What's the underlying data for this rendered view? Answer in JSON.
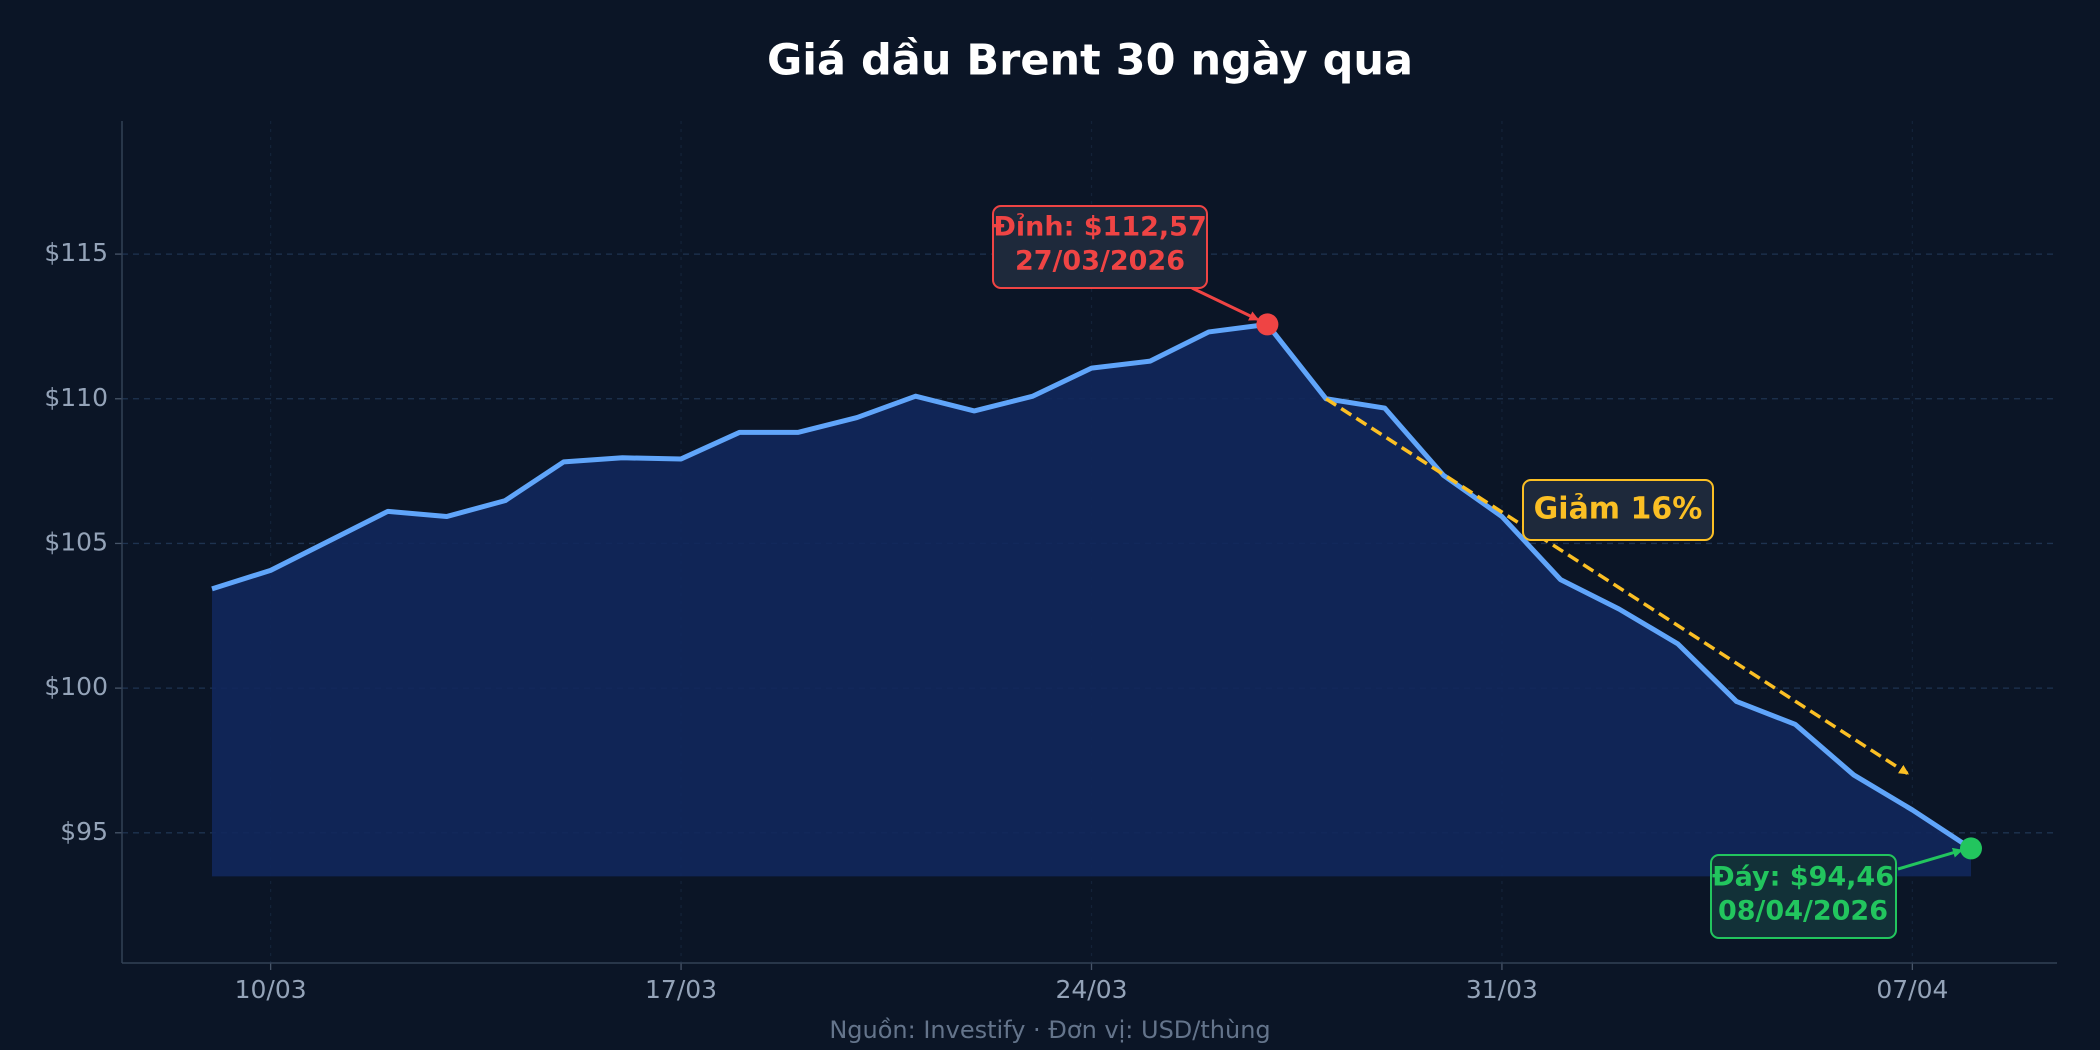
{
  "chart_data": {
    "type": "area",
    "title": "Giá dầu Brent 30 ngày qua",
    "categories": [
      null,
      "10/03",
      null,
      null,
      null,
      null,
      null,
      null,
      "17/03",
      null,
      null,
      null,
      null,
      null,
      null,
      "24/03",
      null,
      null,
      null,
      null,
      null,
      null,
      "31/03",
      null,
      null,
      null,
      null,
      null,
      null,
      "07/04",
      null
    ],
    "values": [
      103.43,
      104.07,
      105.09,
      106.11,
      105.93,
      106.48,
      107.82,
      107.96,
      107.92,
      108.84,
      108.84,
      109.35,
      110.09,
      109.58,
      110.09,
      111.06,
      111.3,
      112.31,
      112.57,
      110.0,
      109.68,
      107.36,
      105.93,
      103.75,
      102.73,
      101.53,
      99.54,
      98.75,
      97.0,
      95.79,
      94.46
    ],
    "color": "#60a5fa",
    "fill_color": "#11275c",
    "ylim": [
      90.5,
      119.6
    ],
    "yticks": [
      {
        "value": 95,
        "label": "$95"
      },
      {
        "value": 100,
        "label": "$100"
      },
      {
        "value": 105,
        "label": "$105"
      },
      {
        "value": 110,
        "label": "$110"
      },
      {
        "value": 115,
        "label": "$115"
      }
    ],
    "grid": true,
    "annotations": {
      "peak": {
        "lines": [
          "Đỉnh: $112,57",
          "27/03/2026"
        ],
        "color": "#ef4444"
      },
      "trough": {
        "lines": [
          "Đáy: $94,46",
          "08/04/2026"
        ],
        "color": "#22c55e"
      },
      "trend": {
        "text": "Giảm 16%",
        "color": "#fbbf24"
      }
    },
    "source": "Nguồn: Investify · Đơn vị: USD/thùng"
  }
}
